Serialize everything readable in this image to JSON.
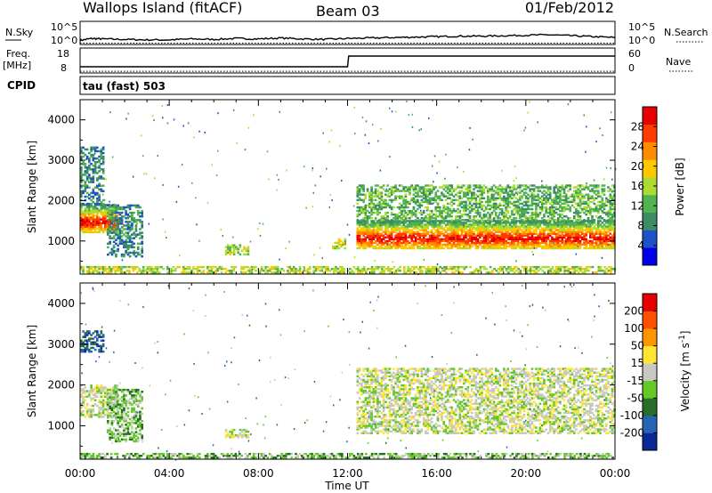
{
  "header": {
    "station": "Wallops Island (fitACF)",
    "beam": "Beam 03",
    "date": "01/Feb/2012"
  },
  "strips": {
    "nsky_label": "N.Sky",
    "nsky_ticks": [
      "10^5",
      "10^0"
    ],
    "nsearch_label": "N.Search",
    "freq_label": "Freq.",
    "freq_unit": "[MHz]",
    "freq_ticks": [
      "18",
      "8"
    ],
    "nave_label": "Nave",
    "nave_ticks": [
      "60",
      "0"
    ],
    "cpid_label": "CPID",
    "cpid_value": "tau (fast) 503"
  },
  "chart_data": [
    {
      "type": "line",
      "panel": "noise",
      "series": [
        {
          "name": "N.Sky",
          "style": "solid",
          "x_hours": [
            0,
            0.5,
            1,
            2,
            3,
            4,
            5,
            6,
            7,
            8,
            9,
            10,
            11,
            12,
            13,
            14,
            15,
            16,
            17,
            18,
            19,
            20,
            21,
            22,
            23,
            24
          ],
          "values_log10": [
            0.9,
            1.3,
            1.2,
            1.1,
            1.0,
            1.0,
            1.2,
            1.1,
            1.3,
            1.2,
            1.4,
            1.2,
            1.1,
            1.3,
            1.4,
            1.5,
            1.6,
            1.7,
            1.8,
            1.8,
            1.9,
            2.0,
            2.1,
            1.9,
            1.7,
            1.5
          ]
        },
        {
          "name": "N.Search",
          "style": "dotted",
          "x_hours": [
            0,
            24
          ],
          "values_log10": [
            0.3,
            0.3
          ]
        }
      ],
      "ylim": [
        0,
        5
      ]
    },
    {
      "type": "line",
      "panel": "freq-nave",
      "series": [
        {
          "name": "Freq.",
          "style": "solid",
          "x_hours": [
            0,
            0.05,
            12,
            12.05,
            24
          ],
          "values": [
            10.5,
            10.5,
            10.5,
            14.8,
            14.8
          ]
        },
        {
          "name": "Nave",
          "style": "dotted",
          "x_hours": [
            0,
            24
          ],
          "values": [
            4,
            4
          ]
        }
      ],
      "ylim_freq": [
        8,
        18
      ],
      "ylim_nave": [
        0,
        60
      ]
    },
    {
      "type": "heatmap",
      "panel": "power",
      "xlabel": "Time UT",
      "ylabel": "Slant Range [km]",
      "x_ticks": [
        "00:00",
        "04:00",
        "08:00",
        "12:00",
        "16:00",
        "20:00",
        "00:00"
      ],
      "x_tick_hours": [
        0,
        4,
        8,
        12,
        16,
        20,
        24
      ],
      "xlim_hours": [
        0,
        24
      ],
      "y_ticks": [
        1000,
        2000,
        3000,
        4000
      ],
      "ylim": [
        180,
        4500
      ],
      "colorbar_label": "Power [dB]",
      "colorbar_ticks": [
        "28",
        "24",
        "20",
        "16",
        "12",
        "8",
        "4"
      ],
      "colors": [
        "#0000e6",
        "#1e50c8",
        "#3c8c64",
        "#50b450",
        "#aadc32",
        "#ffc800",
        "#ff8c00",
        "#ff3c00",
        "#e60000"
      ],
      "regions": [
        {
          "t": [
            0,
            1.7
          ],
          "r": [
            1200,
            1900
          ],
          "level": 7
        },
        {
          "t": [
            0,
            1.0
          ],
          "r": [
            1900,
            3300
          ],
          "level": 2
        },
        {
          "t": [
            1.2,
            2.8
          ],
          "r": [
            600,
            1900
          ],
          "level": 2
        },
        {
          "t": [
            6.5,
            7.5
          ],
          "r": [
            650,
            900
          ],
          "level": 4
        },
        {
          "t": [
            11.3,
            11.9
          ],
          "r": [
            800,
            1050
          ],
          "level": 4
        },
        {
          "t": [
            12.4,
            24
          ],
          "r": [
            800,
            1500
          ],
          "level": 7
        },
        {
          "t": [
            12.4,
            24
          ],
          "r": [
            1500,
            2400
          ],
          "level": 3
        },
        {
          "t": [
            0,
            24
          ],
          "r": [
            200,
            350
          ],
          "level": 4
        }
      ]
    },
    {
      "type": "heatmap",
      "panel": "velocity",
      "xlabel": "Time UT",
      "ylabel": "Slant Range [km]",
      "x_ticks": [
        "00:00",
        "04:00",
        "08:00",
        "12:00",
        "16:00",
        "20:00",
        "00:00"
      ],
      "x_tick_hours": [
        0,
        4,
        8,
        12,
        16,
        20,
        24
      ],
      "xlim_hours": [
        0,
        24
      ],
      "y_ticks": [
        1000,
        2000,
        3000,
        4000
      ],
      "ylim": [
        180,
        4500
      ],
      "colorbar_label": "Velocity [m s^-1]",
      "colorbar_ticks": [
        "200",
        "100",
        "50",
        "15",
        "-15",
        "-50",
        "-100",
        "-200"
      ],
      "colors": [
        "#0a2896",
        "#2864b4",
        "#286e28",
        "#64c828",
        "#c8c8c0",
        "#ffe632",
        "#ff9600",
        "#ff5000",
        "#e60000"
      ],
      "regions": [
        {
          "t": [
            0,
            1.7
          ],
          "r": [
            1200,
            2000
          ],
          "level": 4
        },
        {
          "t": [
            0,
            1.0
          ],
          "r": [
            2800,
            3300
          ],
          "level": 1
        },
        {
          "t": [
            1.2,
            2.8
          ],
          "r": [
            600,
            1900
          ],
          "level": 3
        },
        {
          "t": [
            6.5,
            7.5
          ],
          "r": [
            700,
            900
          ],
          "level": 4
        },
        {
          "t": [
            12.4,
            24
          ],
          "r": [
            800,
            2400
          ],
          "level": 4
        },
        {
          "t": [
            0,
            24
          ],
          "r": [
            200,
            320
          ],
          "level": 3
        }
      ]
    }
  ]
}
